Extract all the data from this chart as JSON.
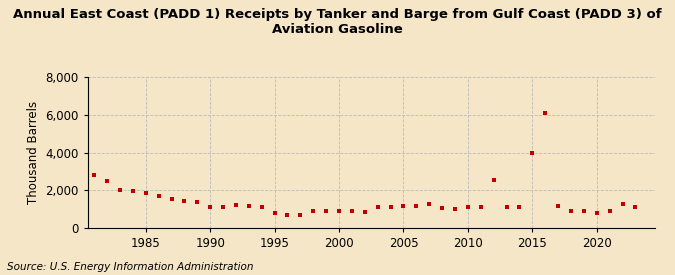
{
  "title": "Annual East Coast (PADD 1) Receipts by Tanker and Barge from Gulf Coast (PADD 3) of\nAviation Gasoline",
  "ylabel": "Thousand Barrels",
  "source": "Source: U.S. Energy Information Administration",
  "background_color": "#f5e6c8",
  "plot_bg_color": "#f5e6c8",
  "marker_color": "#c00000",
  "years": [
    1981,
    1982,
    1983,
    1984,
    1985,
    1986,
    1987,
    1988,
    1989,
    1990,
    1991,
    1992,
    1993,
    1994,
    1995,
    1996,
    1997,
    1998,
    1999,
    2000,
    2001,
    2002,
    2003,
    2004,
    2005,
    2006,
    2007,
    2008,
    2009,
    2010,
    2011,
    2012,
    2013,
    2014,
    2015,
    2016,
    2017,
    2018,
    2019,
    2020,
    2021,
    2022,
    2023
  ],
  "values": [
    2800,
    2500,
    2000,
    1950,
    1850,
    1700,
    1550,
    1450,
    1400,
    1100,
    1100,
    1250,
    1200,
    1150,
    800,
    700,
    700,
    900,
    900,
    900,
    900,
    850,
    1100,
    1100,
    1200,
    1200,
    1300,
    1050,
    1000,
    1150,
    1100,
    2550,
    1150,
    1100,
    4000,
    6100,
    1200,
    900,
    900,
    800,
    900,
    1300,
    1100
  ],
  "ylim": [
    0,
    8000
  ],
  "yticks": [
    0,
    2000,
    4000,
    6000,
    8000
  ],
  "xticks": [
    1985,
    1990,
    1995,
    2000,
    2005,
    2010,
    2015,
    2020
  ],
  "xlim": [
    1980.5,
    2024.5
  ],
  "grid_color": "#bbbbbb",
  "title_fontsize": 9.5,
  "axis_fontsize": 8.5,
  "source_fontsize": 7.5
}
